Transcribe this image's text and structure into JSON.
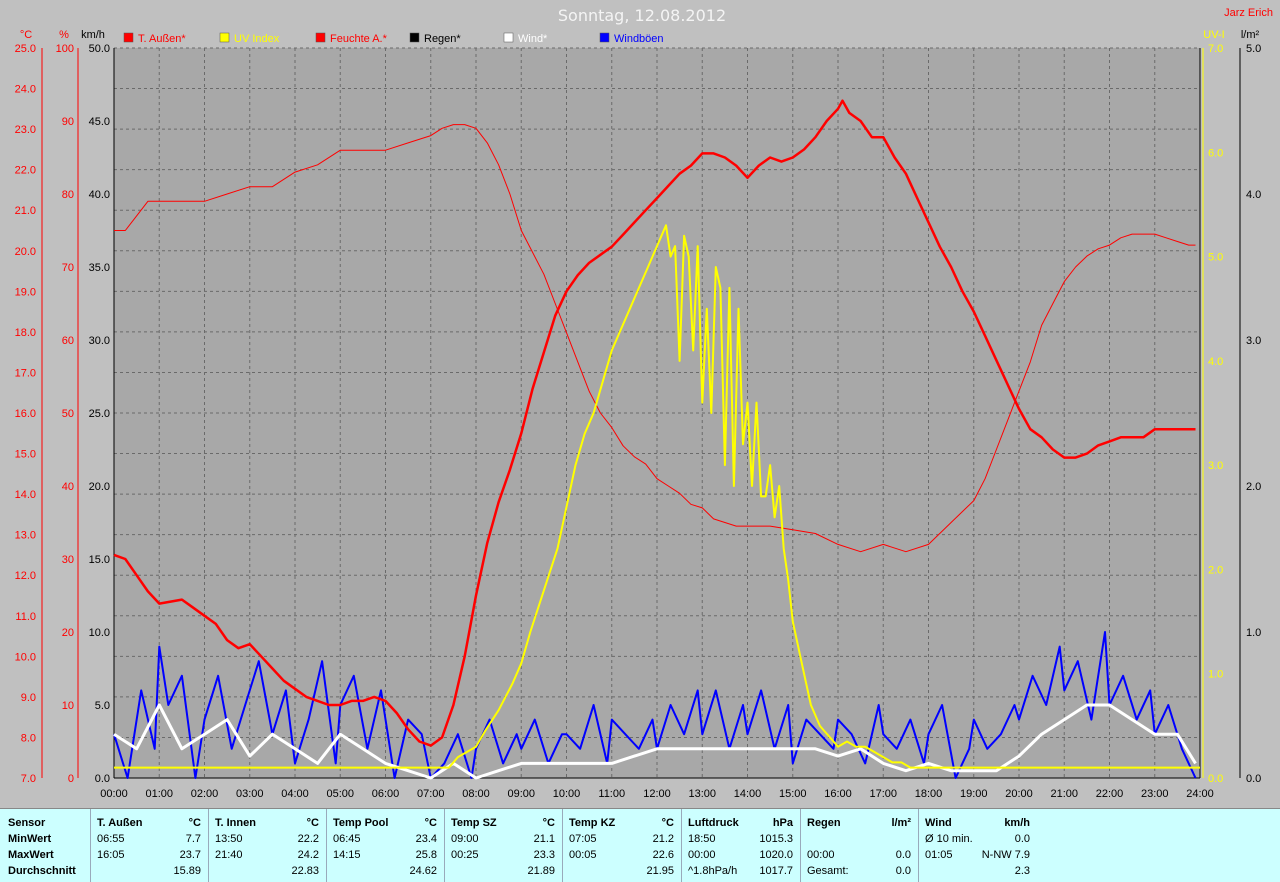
{
  "title": "Sonntag, 12.08.2012",
  "author": "Jarz Erich",
  "colors": {
    "bg": "#c0c0c0",
    "plot": "#a8a8a8",
    "red": "#ff0000",
    "yellow": "#ffff00",
    "blue": "#0000ff",
    "white": "#ffffff",
    "black": "#000000"
  },
  "chart_data": {
    "type": "line",
    "x_labels": [
      "00:00",
      "01:00",
      "02:00",
      "03:00",
      "04:00",
      "05:00",
      "06:00",
      "07:00",
      "08:00",
      "09:00",
      "10:00",
      "11:00",
      "12:00",
      "13:00",
      "14:00",
      "15:00",
      "16:00",
      "17:00",
      "18:00",
      "19:00",
      "20:00",
      "21:00",
      "22:00",
      "23:00",
      "24:00"
    ],
    "axes": {
      "temp": {
        "label": "°C",
        "min": 7.0,
        "max": 25.0,
        "ticks": [
          "7.0",
          "8.0",
          "9.0",
          "10.0",
          "11.0",
          "12.0",
          "13.0",
          "14.0",
          "15.0",
          "16.0",
          "17.0",
          "18.0",
          "19.0",
          "20.0",
          "21.0",
          "22.0",
          "23.0",
          "24.0",
          "25.0"
        ]
      },
      "humidity": {
        "label": "%",
        "min": 0,
        "max": 100,
        "ticks": [
          "0",
          "10",
          "20",
          "30",
          "40",
          "50",
          "60",
          "70",
          "80",
          "90",
          "100"
        ]
      },
      "wind": {
        "label": "km/h",
        "min": 0,
        "max": 50,
        "ticks": [
          "0.0",
          "5.0",
          "10.0",
          "15.0",
          "20.0",
          "25.0",
          "30.0",
          "35.0",
          "40.0",
          "45.0",
          "50.0"
        ]
      },
      "uv": {
        "label": "UV-I",
        "min": 0,
        "max": 7,
        "ticks": [
          "0.0",
          "1.0",
          "2.0",
          "3.0",
          "4.0",
          "5.0",
          "6.0",
          "7.0"
        ]
      },
      "rain": {
        "label": "l/m²",
        "min": 0,
        "max": 5,
        "ticks": [
          "0.0",
          "1.0",
          "2.0",
          "3.0",
          "4.0",
          "5.0"
        ]
      }
    },
    "legend": [
      {
        "name": "T. Außen*",
        "color": "#ff0000"
      },
      {
        "name": "UV Index",
        "color": "#ffff00"
      },
      {
        "name": "Feuchte A.*",
        "color": "#ff0000"
      },
      {
        "name": "Regen*",
        "color": "#000000"
      },
      {
        "name": "Wind*",
        "color": "#ffffff"
      },
      {
        "name": "Windböen",
        "color": "#0000ff"
      }
    ],
    "series": [
      {
        "name": "T. Außen*",
        "axis": "temp",
        "color": "#ff0000",
        "x": [
          0,
          0.25,
          0.5,
          0.75,
          1,
          1.5,
          1.75,
          2,
          2.25,
          2.5,
          2.75,
          3,
          3.25,
          3.5,
          3.75,
          4,
          4.25,
          4.5,
          4.75,
          5,
          5.25,
          5.5,
          5.75,
          6,
          6.25,
          6.5,
          6.75,
          7,
          7.25,
          7.5,
          7.75,
          8,
          8.25,
          8.5,
          8.75,
          9,
          9.25,
          9.5,
          9.75,
          10,
          10.25,
          10.5,
          10.75,
          11,
          11.25,
          11.5,
          11.75,
          12,
          12.25,
          12.5,
          12.75,
          13,
          13.25,
          13.5,
          13.75,
          14,
          14.25,
          14.5,
          14.75,
          15,
          15.25,
          15.5,
          15.75,
          16,
          16.1,
          16.25,
          16.5,
          16.75,
          17,
          17.25,
          17.5,
          17.75,
          18,
          18.25,
          18.5,
          18.75,
          19,
          19.25,
          19.5,
          19.75,
          20,
          20.25,
          20.5,
          20.75,
          21,
          21.25,
          21.5,
          21.75,
          22,
          22.25,
          22.5,
          22.75,
          23,
          23.25,
          23.5,
          23.75,
          23.9
        ],
        "y": [
          12.5,
          12.4,
          12.0,
          11.6,
          11.3,
          11.4,
          11.2,
          11.0,
          10.8,
          10.4,
          10.2,
          10.3,
          10.0,
          9.7,
          9.4,
          9.2,
          9.0,
          8.9,
          8.8,
          8.8,
          8.9,
          8.9,
          9.0,
          8.9,
          8.6,
          8.2,
          7.9,
          7.8,
          8.0,
          8.8,
          10.0,
          11.5,
          12.8,
          13.8,
          14.6,
          15.5,
          16.6,
          17.5,
          18.4,
          19.0,
          19.4,
          19.7,
          19.9,
          20.1,
          20.4,
          20.7,
          21.0,
          21.3,
          21.6,
          21.9,
          22.1,
          22.4,
          22.4,
          22.3,
          22.1,
          21.8,
          22.1,
          22.3,
          22.2,
          22.3,
          22.5,
          22.8,
          23.2,
          23.5,
          23.7,
          23.4,
          23.2,
          22.8,
          22.8,
          22.3,
          21.9,
          21.3,
          20.7,
          20.1,
          19.6,
          19.0,
          18.5,
          17.9,
          17.3,
          16.7,
          16.1,
          15.6,
          15.4,
          15.1,
          14.9,
          14.9,
          15.0,
          15.2,
          15.3,
          15.4,
          15.4,
          15.4,
          15.6,
          15.6,
          15.6,
          15.6,
          15.6
        ]
      },
      {
        "name": "Feuchte A.*",
        "axis": "humidity",
        "color": "#ff0000",
        "x": [
          0,
          0.25,
          0.5,
          0.75,
          1,
          1.5,
          2,
          2.5,
          3,
          3.25,
          3.5,
          4,
          4.5,
          5,
          5.25,
          5.5,
          6,
          6.5,
          7,
          7.25,
          7.5,
          7.75,
          8,
          8.25,
          8.5,
          8.75,
          9,
          9.25,
          9.5,
          9.75,
          10,
          10.25,
          10.5,
          10.75,
          11,
          11.25,
          11.5,
          11.75,
          12,
          12.25,
          12.5,
          12.75,
          13,
          13.25,
          13.5,
          13.75,
          14,
          14.5,
          15,
          15.5,
          16,
          16.5,
          17,
          17.5,
          18,
          18.5,
          19,
          19.25,
          19.5,
          19.75,
          20,
          20.25,
          20.5,
          20.75,
          21,
          21.25,
          21.5,
          21.75,
          22,
          22.25,
          22.5,
          22.75,
          23,
          23.25,
          23.5,
          23.75,
          23.9
        ],
        "y": [
          75,
          75,
          77,
          79,
          79,
          79,
          79,
          80,
          81,
          81,
          81,
          83,
          84,
          86,
          86,
          86,
          86,
          87,
          88,
          89,
          89.5,
          89.5,
          89,
          87,
          84,
          80,
          75,
          72,
          69,
          65,
          61,
          57,
          53,
          50,
          48,
          45.5,
          44,
          43,
          41,
          40,
          39,
          37.5,
          37,
          35.5,
          35,
          34.5,
          34.5,
          34.5,
          34,
          33.5,
          32,
          31,
          32,
          31,
          32,
          35,
          38,
          41,
          45,
          49,
          53,
          57,
          62,
          65,
          68,
          70,
          71.5,
          72.5,
          73,
          74,
          74.5,
          74.5,
          74.5,
          74,
          73.5,
          73,
          73
        ]
      },
      {
        "name": "UV Index",
        "axis": "uv",
        "color": "#ffff00",
        "x": [
          0,
          7.4,
          7.6,
          8.0,
          8.2,
          8.5,
          8.8,
          9.0,
          9.2,
          9.5,
          9.8,
          10.0,
          10.2,
          10.4,
          10.6,
          10.8,
          11.0,
          11.2,
          11.4,
          11.6,
          11.8,
          12.0,
          12.2,
          12.3,
          12.4,
          12.5,
          12.6,
          12.7,
          12.8,
          12.9,
          13.0,
          13.1,
          13.2,
          13.3,
          13.4,
          13.5,
          13.6,
          13.7,
          13.8,
          13.9,
          14.0,
          14.1,
          14.2,
          14.3,
          14.4,
          14.5,
          14.6,
          14.7,
          14.8,
          14.9,
          15.0,
          15.1,
          15.2,
          15.3,
          15.4,
          15.5,
          15.6,
          15.7,
          15.8,
          15.9,
          16.0,
          16.2,
          16.4,
          16.6,
          16.8,
          17.0,
          17.2,
          17.4,
          17.6,
          17.8,
          18.0,
          18.2,
          18.4,
          18.6,
          18.8,
          19.0,
          24
        ],
        "y": [
          0.1,
          0.1,
          0.2,
          0.3,
          0.45,
          0.65,
          0.9,
          1.1,
          1.4,
          1.8,
          2.2,
          2.6,
          3.0,
          3.3,
          3.5,
          3.8,
          4.1,
          4.3,
          4.5,
          4.7,
          4.9,
          5.1,
          5.3,
          5.0,
          5.1,
          4.0,
          5.2,
          5.0,
          4.1,
          5.1,
          3.6,
          4.5,
          3.5,
          4.9,
          4.7,
          3.0,
          4.7,
          2.8,
          4.5,
          3.2,
          3.6,
          2.8,
          3.6,
          2.7,
          2.7,
          3.0,
          2.5,
          2.8,
          2.2,
          1.9,
          1.5,
          1.3,
          1.1,
          0.9,
          0.7,
          0.6,
          0.5,
          0.45,
          0.4,
          0.35,
          0.3,
          0.35,
          0.3,
          0.3,
          0.25,
          0.2,
          0.15,
          0.15,
          0.1,
          0.1,
          0.1,
          0.1,
          0.1,
          0.1,
          0.1,
          0.1,
          0.1
        ]
      },
      {
        "name": "Wind*",
        "axis": "wind",
        "color": "#ffffff",
        "x": [
          0,
          0.5,
          1,
          1.5,
          2,
          2.5,
          3,
          3.5,
          4,
          4.5,
          5,
          5.5,
          6,
          6.5,
          7,
          7.5,
          8,
          8.5,
          9,
          9.5,
          10,
          10.5,
          11,
          11.5,
          12,
          12.5,
          13,
          13.5,
          14,
          14.5,
          15,
          15.5,
          16,
          16.5,
          17,
          17.5,
          18,
          18.5,
          19,
          19.5,
          20,
          20.5,
          21,
          21.5,
          22,
          22.5,
          23,
          23.5,
          23.9
        ],
        "y": [
          3,
          2,
          5,
          2,
          3,
          4,
          1.5,
          3,
          2,
          1,
          3,
          2,
          1,
          0.5,
          0,
          1,
          0,
          0.5,
          1,
          1,
          1,
          1,
          1,
          1.5,
          2,
          2,
          2,
          2,
          2,
          2,
          2,
          2,
          1.5,
          2,
          1,
          0.5,
          1,
          0.5,
          0.5,
          0.5,
          1.5,
          3,
          4,
          5,
          5,
          4,
          3,
          3,
          1
        ]
      },
      {
        "name": "Windböen",
        "axis": "wind",
        "color": "#0000ff",
        "x": [
          0,
          0.3,
          0.6,
          0.9,
          1,
          1.2,
          1.5,
          1.8,
          2,
          2.3,
          2.6,
          2.9,
          3.2,
          3.5,
          3.8,
          4,
          4.3,
          4.6,
          4.9,
          5,
          5.3,
          5.6,
          5.9,
          6.2,
          6.5,
          6.8,
          7,
          7.3,
          7.6,
          7.9,
          8,
          8.3,
          8.6,
          8.9,
          9,
          9.3,
          9.6,
          9.9,
          10,
          10.3,
          10.6,
          10.9,
          11,
          11.3,
          11.6,
          11.9,
          12,
          12.3,
          12.6,
          12.9,
          13,
          13.3,
          13.6,
          13.9,
          14,
          14.3,
          14.6,
          14.9,
          15,
          15.3,
          15.6,
          15.9,
          16,
          16.3,
          16.6,
          16.9,
          17,
          17.3,
          17.6,
          17.9,
          18,
          18.3,
          18.6,
          18.9,
          19,
          19.3,
          19.6,
          19.9,
          20,
          20.3,
          20.6,
          20.9,
          21,
          21.3,
          21.6,
          21.9,
          22,
          22.3,
          22.6,
          22.9,
          23,
          23.3,
          23.6,
          23.9
        ],
        "y": [
          3,
          0,
          6,
          2,
          9,
          5,
          7,
          0,
          4,
          7,
          2,
          5,
          8,
          3,
          6,
          1,
          4,
          8,
          1,
          5,
          7,
          2,
          6,
          0,
          4,
          3,
          0,
          1,
          3,
          0,
          2,
          4,
          1,
          3,
          2,
          4,
          1,
          3,
          3,
          2,
          5,
          1,
          4,
          3,
          2,
          4,
          2,
          5,
          3,
          6,
          3,
          6,
          2,
          5,
          3,
          6,
          2,
          5,
          1,
          4,
          3,
          2,
          4,
          3,
          1,
          5,
          3,
          2,
          4,
          1,
          3,
          5,
          0,
          2,
          4,
          2,
          3,
          5,
          4,
          7,
          5,
          9,
          6,
          8,
          4,
          10,
          5,
          7,
          4,
          6,
          3,
          5,
          2,
          0
        ]
      }
    ]
  },
  "table": {
    "sensor_col": {
      "header": "Sensor",
      "min": "MinWert",
      "max": "MaxWert",
      "avg": "Durchschnitt"
    },
    "groups": [
      {
        "name": "T. Außen",
        "unit": "°C",
        "min_t": "06:55",
        "min_v": "7.7",
        "max_t": "16:05",
        "max_v": "23.7",
        "avg_t": "",
        "avg_v": "15.89"
      },
      {
        "name": "T. Innen",
        "unit": "°C",
        "min_t": "13:50",
        "min_v": "22.2",
        "max_t": "21:40",
        "max_v": "24.2",
        "avg_t": "",
        "avg_v": "22.83"
      },
      {
        "name": "Temp Pool",
        "unit": "°C",
        "min_t": "06:45",
        "min_v": "23.4",
        "max_t": "14:15",
        "max_v": "25.8",
        "avg_t": "",
        "avg_v": "24.62"
      },
      {
        "name": "Temp SZ",
        "unit": "°C",
        "min_t": "09:00",
        "min_v": "21.1",
        "max_t": "00:25",
        "max_v": "23.3",
        "avg_t": "",
        "avg_v": "21.89"
      },
      {
        "name": "Temp KZ",
        "unit": "°C",
        "min_t": "07:05",
        "min_v": "21.2",
        "max_t": "00:05",
        "max_v": "22.6",
        "avg_t": "",
        "avg_v": "21.95"
      },
      {
        "name": "Luftdruck",
        "unit": "hPa",
        "min_t": "18:50",
        "min_v": "1015.3",
        "max_t": "00:00",
        "max_v": "1020.0",
        "avg_t": "^1.8hPa/h",
        "avg_v": "1017.7"
      },
      {
        "name": "Regen",
        "unit": "l/m²",
        "min_t": "",
        "min_v": "",
        "max_t": "00:00",
        "max_v": "0.0",
        "avg_t": "Gesamt:",
        "avg_v": "0.0"
      },
      {
        "name": "Wind",
        "unit": "km/h",
        "min_t": "Ø 10 min.",
        "min_v": "0.0",
        "max_t": "01:05",
        "max_v": "N-NW 7.9",
        "avg_t": "",
        "avg_v": "2.3"
      }
    ]
  }
}
